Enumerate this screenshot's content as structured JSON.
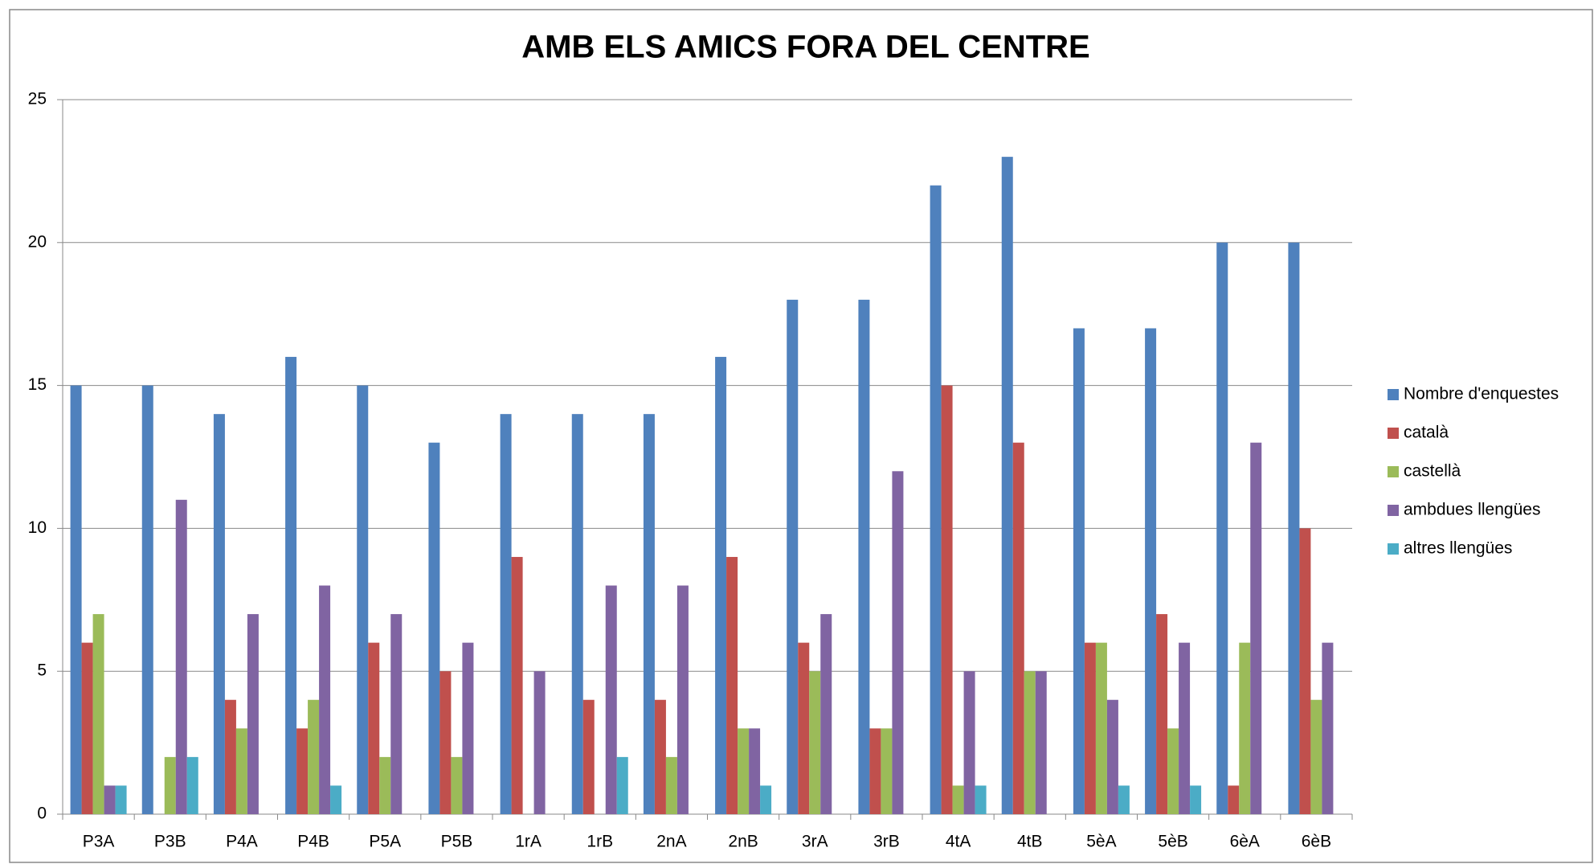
{
  "chart_data": {
    "type": "bar",
    "title": "AMB ELS AMICS FORA DEL CENTRE",
    "categories": [
      "P3A",
      "P3B",
      "P4A",
      "P4B",
      "P5A",
      "P5B",
      "1rA",
      "1rB",
      "2nA",
      "2nB",
      "3rA",
      "3rB",
      "4tA",
      "4tB",
      "5èA",
      "5èB",
      "6èA",
      "6èB"
    ],
    "series": [
      {
        "name": "Nombre d'enquestes",
        "color": "#4f81bd",
        "values": [
          15,
          15,
          14,
          16,
          15,
          13,
          14,
          14,
          14,
          16,
          18,
          18,
          22,
          23,
          17,
          17,
          20,
          20
        ]
      },
      {
        "name": "català",
        "color": "#c0504d",
        "values": [
          6,
          0,
          4,
          3,
          6,
          5,
          9,
          4,
          4,
          9,
          6,
          3,
          15,
          13,
          6,
          7,
          1,
          10
        ]
      },
      {
        "name": "castellà",
        "color": "#9bbb59",
        "values": [
          7,
          2,
          3,
          4,
          2,
          2,
          0,
          0,
          2,
          3,
          5,
          3,
          1,
          5,
          6,
          3,
          6,
          4
        ]
      },
      {
        "name": "ambdues llengües",
        "color": "#8064a2",
        "values": [
          1,
          11,
          7,
          8,
          7,
          6,
          5,
          8,
          8,
          3,
          7,
          12,
          5,
          5,
          4,
          6,
          13,
          6
        ]
      },
      {
        "name": "altres llengües",
        "color": "#4bacc6",
        "values": [
          1,
          2,
          0,
          1,
          0,
          0,
          0,
          2,
          0,
          1,
          0,
          0,
          1,
          0,
          1,
          1,
          0,
          0
        ]
      }
    ],
    "ylim": [
      0,
      25
    ],
    "yticks": [
      0,
      5,
      10,
      15,
      20,
      25
    ],
    "grid": true,
    "legend": "right"
  }
}
